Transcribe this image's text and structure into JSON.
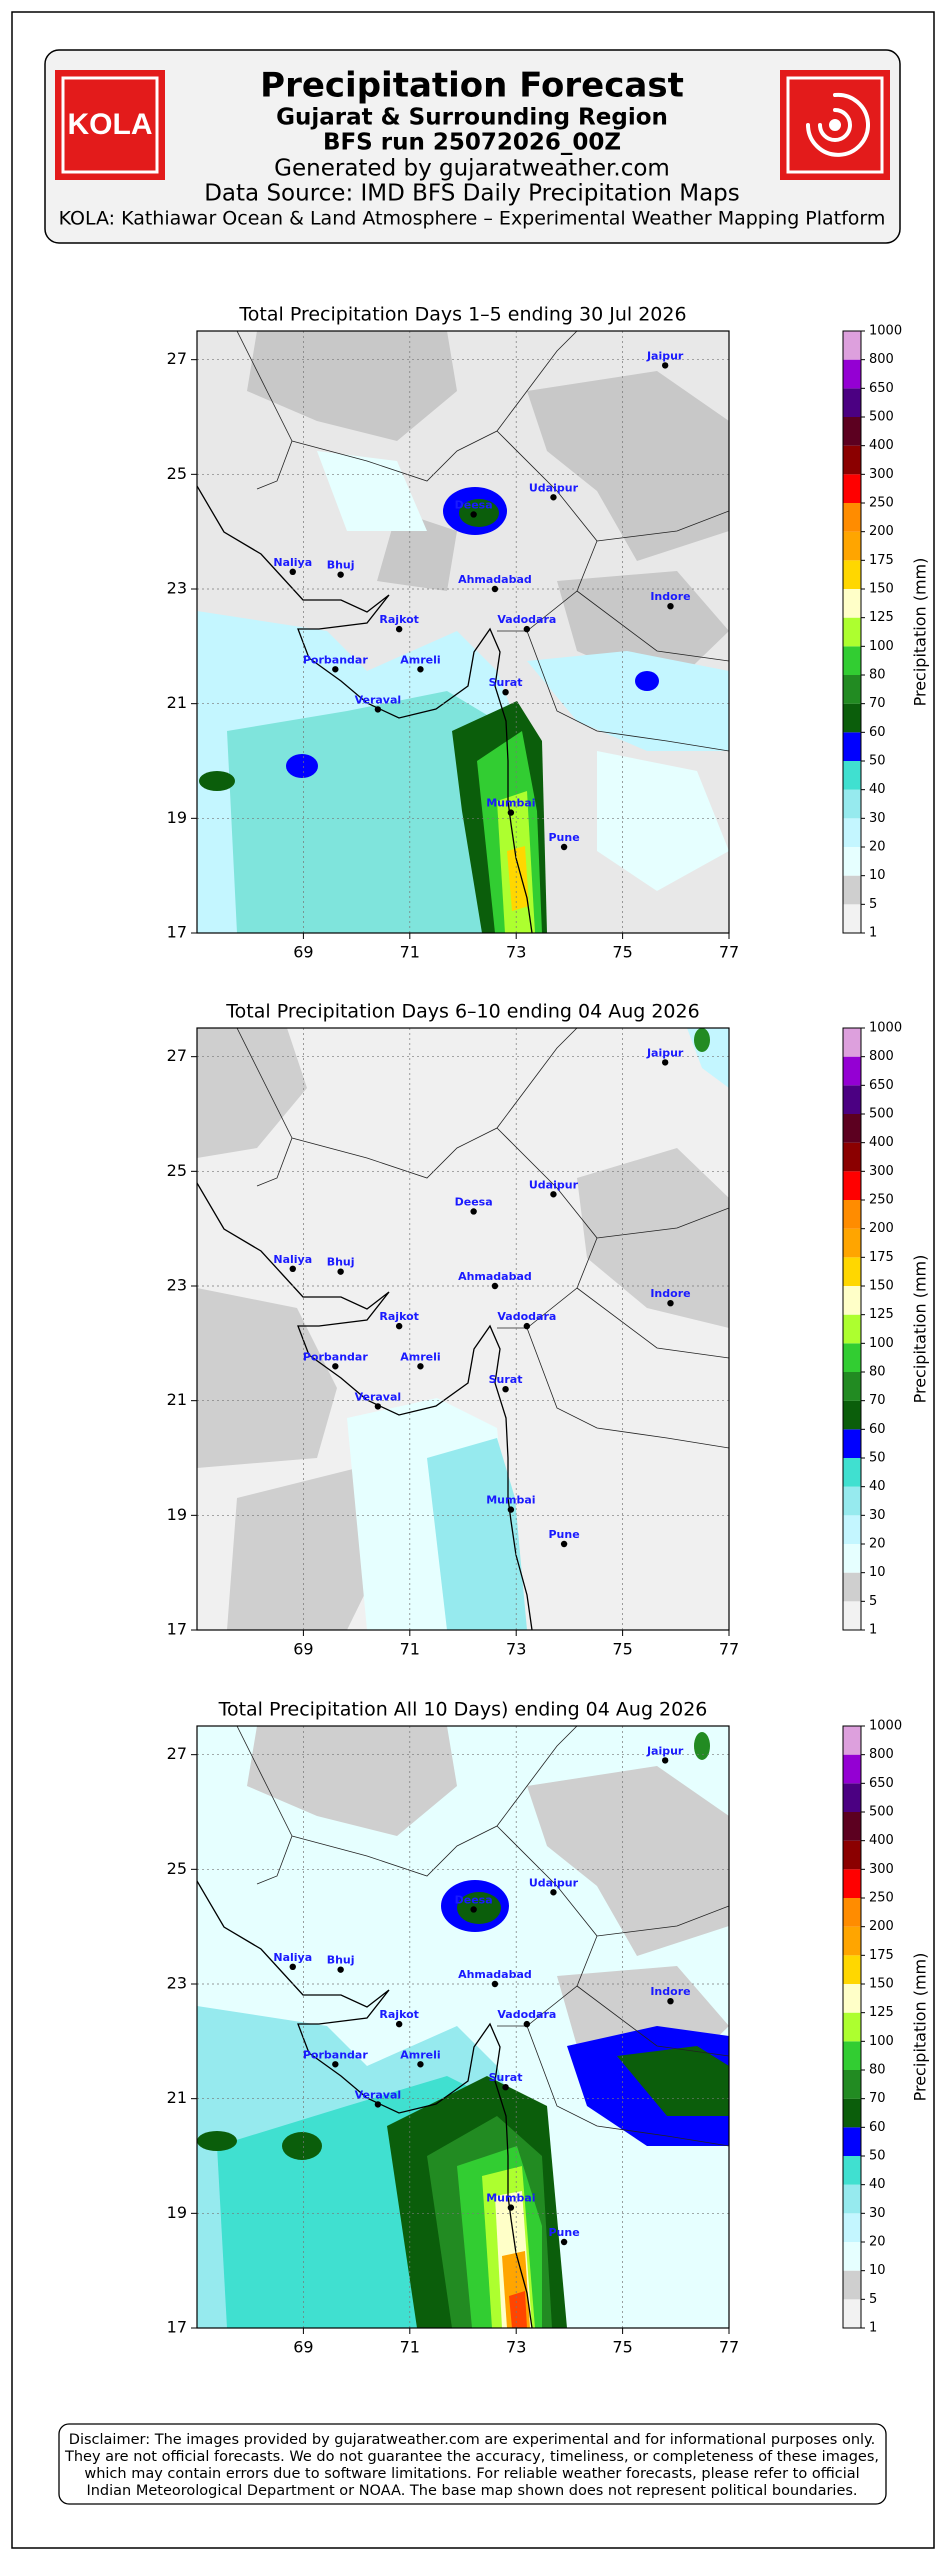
{
  "header": {
    "logo_text": "KOLA",
    "title": "Precipitation Forecast",
    "subtitle": "Gujarat & Surrounding Region",
    "run": "BFS run 25072026_00Z",
    "generated": "Generated by gujaratweather.com",
    "source": "Data Source: IMD BFS Daily Precipitation Maps",
    "platform": "KOLA: Kathiawar Ocean & Land Atmosphere – Experimental Weather Mapping Platform"
  },
  "maps": [
    {
      "title": "Total Precipitation Days 1–5 ending 30 Jul 2026",
      "xlim": [
        67,
        77
      ],
      "ylim": [
        17,
        27.5
      ],
      "xticks": [
        69,
        71,
        73,
        75,
        77
      ],
      "yticks": [
        17,
        19,
        21,
        23,
        25,
        27
      ]
    },
    {
      "title": "Total Precipitation Days 6–10 ending 04 Aug 2026",
      "xlim": [
        67,
        77
      ],
      "ylim": [
        17,
        27.5
      ],
      "xticks": [
        69,
        71,
        73,
        75,
        77
      ],
      "yticks": [
        17,
        19,
        21,
        23,
        25,
        27
      ]
    },
    {
      "title": "Total Precipitation All 10 Days) ending 04 Aug 2026",
      "xlim": [
        67,
        77
      ],
      "ylim": [
        17,
        27.5
      ],
      "xticks": [
        69,
        71,
        73,
        75,
        77
      ],
      "yticks": [
        17,
        19,
        21,
        23,
        25,
        27
      ]
    }
  ],
  "cities": [
    "Jaipur",
    "Udaipur",
    "Deesa",
    "Naliya",
    "Bhuj",
    "Ahmadabad",
    "Indore",
    "Rajkot",
    "Vadodara",
    "Porbandar",
    "Amreli",
    "Surat",
    "Veraval",
    "Mumbai",
    "Pune"
  ],
  "colorbar": {
    "label": "Precipitation (mm)",
    "levels": [
      1,
      5,
      10,
      20,
      30,
      40,
      50,
      60,
      70,
      80,
      100,
      125,
      150,
      175,
      200,
      250,
      300,
      400,
      500,
      650,
      800,
      1000
    ],
    "colors": [
      "#f2f2f2",
      "#cfcfcf",
      "#e6ffff",
      "#c4f6ff",
      "#96eaee",
      "#40e0d0",
      "#0000ff",
      "#0b5e0b",
      "#228b22",
      "#32cd32",
      "#adff2f",
      "#ffffc8",
      "#ffd700",
      "#ffa500",
      "#ff8c00",
      "#ff0000",
      "#8b0000",
      "#5c0020",
      "#4b0082",
      "#9400d3",
      "#dda0dd"
    ]
  },
  "disclaimer": [
    "Disclaimer: The images provided by gujaratweather.com are experimental and for informational purposes only.",
    "They are not official forecasts. We do not guarantee the accuracy, timeliness, or completeness of these images,",
    "which may contain errors due to software limitations. For reliable weather forecasts, please refer to official",
    "Indian Meteorological Department or NOAA. The base map shown does not represent political boundaries."
  ]
}
